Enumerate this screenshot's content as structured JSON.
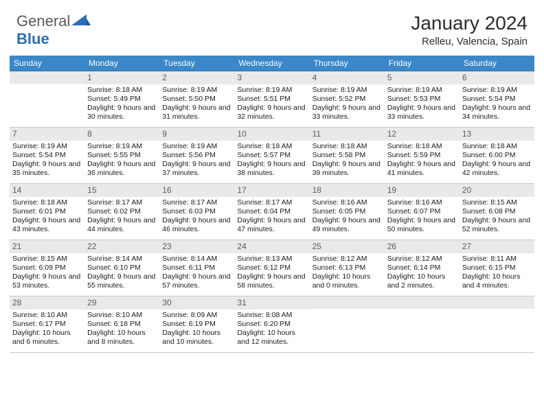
{
  "logo": {
    "text1": "General",
    "text2": "Blue"
  },
  "title": "January 2024",
  "location": "Relleu, Valencia, Spain",
  "colors": {
    "header_bg": "#3b87c8",
    "header_text": "#ffffff",
    "daynum_bg": "#e9e9e9",
    "row_border": "#3b6fa0",
    "logo_gray": "#5a5a5a",
    "logo_blue": "#2a6fb5"
  },
  "weekdays": [
    "Sunday",
    "Monday",
    "Tuesday",
    "Wednesday",
    "Thursday",
    "Friday",
    "Saturday"
  ],
  "weeks": [
    [
      {
        "n": "",
        "sr": "",
        "ss": "",
        "dl": ""
      },
      {
        "n": "1",
        "sr": "Sunrise: 8:18 AM",
        "ss": "Sunset: 5:49 PM",
        "dl": "Daylight: 9 hours and 30 minutes."
      },
      {
        "n": "2",
        "sr": "Sunrise: 8:19 AM",
        "ss": "Sunset: 5:50 PM",
        "dl": "Daylight: 9 hours and 31 minutes."
      },
      {
        "n": "3",
        "sr": "Sunrise: 8:19 AM",
        "ss": "Sunset: 5:51 PM",
        "dl": "Daylight: 9 hours and 32 minutes."
      },
      {
        "n": "4",
        "sr": "Sunrise: 8:19 AM",
        "ss": "Sunset: 5:52 PM",
        "dl": "Daylight: 9 hours and 33 minutes."
      },
      {
        "n": "5",
        "sr": "Sunrise: 8:19 AM",
        "ss": "Sunset: 5:53 PM",
        "dl": "Daylight: 9 hours and 33 minutes."
      },
      {
        "n": "6",
        "sr": "Sunrise: 8:19 AM",
        "ss": "Sunset: 5:54 PM",
        "dl": "Daylight: 9 hours and 34 minutes."
      }
    ],
    [
      {
        "n": "7",
        "sr": "Sunrise: 8:19 AM",
        "ss": "Sunset: 5:54 PM",
        "dl": "Daylight: 9 hours and 35 minutes."
      },
      {
        "n": "8",
        "sr": "Sunrise: 8:19 AM",
        "ss": "Sunset: 5:55 PM",
        "dl": "Daylight: 9 hours and 36 minutes."
      },
      {
        "n": "9",
        "sr": "Sunrise: 8:19 AM",
        "ss": "Sunset: 5:56 PM",
        "dl": "Daylight: 9 hours and 37 minutes."
      },
      {
        "n": "10",
        "sr": "Sunrise: 8:18 AM",
        "ss": "Sunset: 5:57 PM",
        "dl": "Daylight: 9 hours and 38 minutes."
      },
      {
        "n": "11",
        "sr": "Sunrise: 8:18 AM",
        "ss": "Sunset: 5:58 PM",
        "dl": "Daylight: 9 hours and 39 minutes."
      },
      {
        "n": "12",
        "sr": "Sunrise: 8:18 AM",
        "ss": "Sunset: 5:59 PM",
        "dl": "Daylight: 9 hours and 41 minutes."
      },
      {
        "n": "13",
        "sr": "Sunrise: 8:18 AM",
        "ss": "Sunset: 6:00 PM",
        "dl": "Daylight: 9 hours and 42 minutes."
      }
    ],
    [
      {
        "n": "14",
        "sr": "Sunrise: 8:18 AM",
        "ss": "Sunset: 6:01 PM",
        "dl": "Daylight: 9 hours and 43 minutes."
      },
      {
        "n": "15",
        "sr": "Sunrise: 8:17 AM",
        "ss": "Sunset: 6:02 PM",
        "dl": "Daylight: 9 hours and 44 minutes."
      },
      {
        "n": "16",
        "sr": "Sunrise: 8:17 AM",
        "ss": "Sunset: 6:03 PM",
        "dl": "Daylight: 9 hours and 46 minutes."
      },
      {
        "n": "17",
        "sr": "Sunrise: 8:17 AM",
        "ss": "Sunset: 6:04 PM",
        "dl": "Daylight: 9 hours and 47 minutes."
      },
      {
        "n": "18",
        "sr": "Sunrise: 8:16 AM",
        "ss": "Sunset: 6:05 PM",
        "dl": "Daylight: 9 hours and 49 minutes."
      },
      {
        "n": "19",
        "sr": "Sunrise: 8:16 AM",
        "ss": "Sunset: 6:07 PM",
        "dl": "Daylight: 9 hours and 50 minutes."
      },
      {
        "n": "20",
        "sr": "Sunrise: 8:15 AM",
        "ss": "Sunset: 6:08 PM",
        "dl": "Daylight: 9 hours and 52 minutes."
      }
    ],
    [
      {
        "n": "21",
        "sr": "Sunrise: 8:15 AM",
        "ss": "Sunset: 6:09 PM",
        "dl": "Daylight: 9 hours and 53 minutes."
      },
      {
        "n": "22",
        "sr": "Sunrise: 8:14 AM",
        "ss": "Sunset: 6:10 PM",
        "dl": "Daylight: 9 hours and 55 minutes."
      },
      {
        "n": "23",
        "sr": "Sunrise: 8:14 AM",
        "ss": "Sunset: 6:11 PM",
        "dl": "Daylight: 9 hours and 57 minutes."
      },
      {
        "n": "24",
        "sr": "Sunrise: 8:13 AM",
        "ss": "Sunset: 6:12 PM",
        "dl": "Daylight: 9 hours and 58 minutes."
      },
      {
        "n": "25",
        "sr": "Sunrise: 8:12 AM",
        "ss": "Sunset: 6:13 PM",
        "dl": "Daylight: 10 hours and 0 minutes."
      },
      {
        "n": "26",
        "sr": "Sunrise: 8:12 AM",
        "ss": "Sunset: 6:14 PM",
        "dl": "Daylight: 10 hours and 2 minutes."
      },
      {
        "n": "27",
        "sr": "Sunrise: 8:11 AM",
        "ss": "Sunset: 6:15 PM",
        "dl": "Daylight: 10 hours and 4 minutes."
      }
    ],
    [
      {
        "n": "28",
        "sr": "Sunrise: 8:10 AM",
        "ss": "Sunset: 6:17 PM",
        "dl": "Daylight: 10 hours and 6 minutes."
      },
      {
        "n": "29",
        "sr": "Sunrise: 8:10 AM",
        "ss": "Sunset: 6:18 PM",
        "dl": "Daylight: 10 hours and 8 minutes."
      },
      {
        "n": "30",
        "sr": "Sunrise: 8:09 AM",
        "ss": "Sunset: 6:19 PM",
        "dl": "Daylight: 10 hours and 10 minutes."
      },
      {
        "n": "31",
        "sr": "Sunrise: 8:08 AM",
        "ss": "Sunset: 6:20 PM",
        "dl": "Daylight: 10 hours and 12 minutes."
      },
      {
        "n": "",
        "sr": "",
        "ss": "",
        "dl": ""
      },
      {
        "n": "",
        "sr": "",
        "ss": "",
        "dl": ""
      },
      {
        "n": "",
        "sr": "",
        "ss": "",
        "dl": ""
      }
    ]
  ]
}
